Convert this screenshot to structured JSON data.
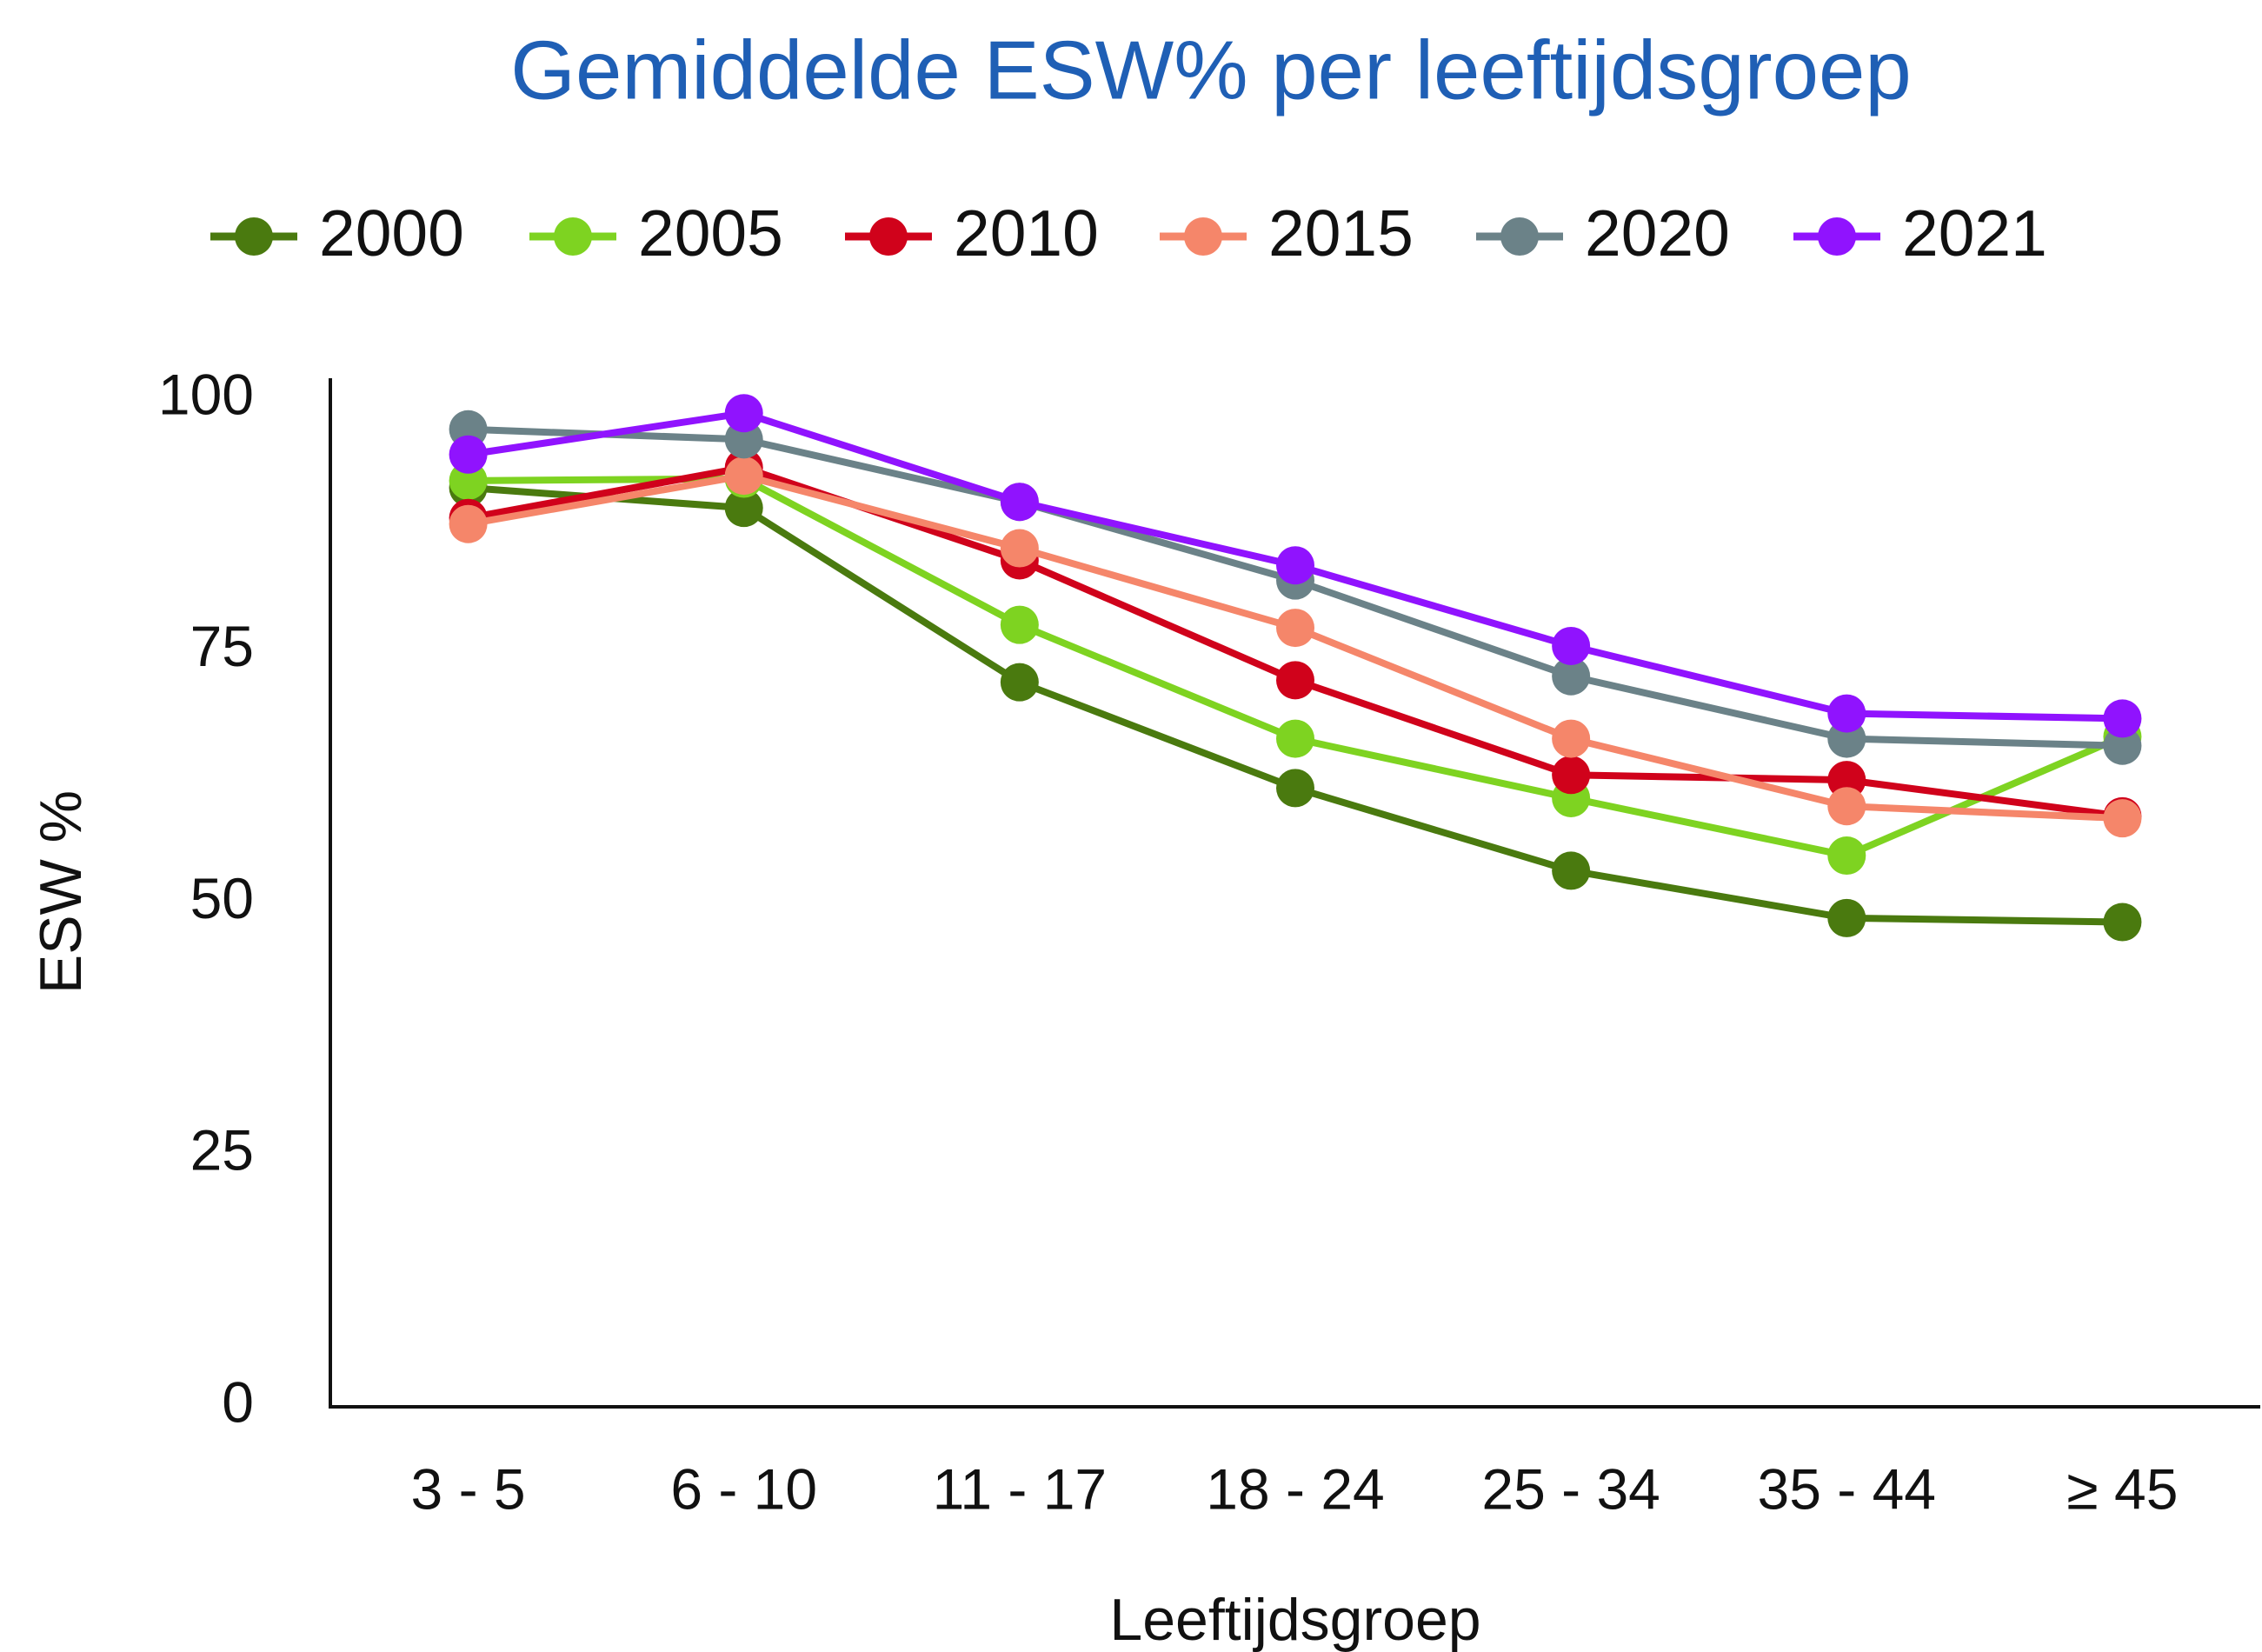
{
  "chart_data": {
    "type": "line",
    "title": "Gemiddelde ESW%  per leeftijdsgroep",
    "x_label": "Leeftijdsgroep",
    "y_label": "ESW %",
    "categories": [
      "3 - 5",
      "6 - 10",
      "11 - 17",
      "18 - 24",
      "25 - 34",
      "35 - 44",
      "≥ 45"
    ],
    "series": [
      {
        "name": "2000",
        "color": "#4a7a0f",
        "values": [
          91.2,
          89.2,
          71.9,
          61.4,
          53.2,
          48.5,
          48.1
        ]
      },
      {
        "name": "2005",
        "color": "#7ed321",
        "values": [
          91.9,
          92.1,
          77.6,
          66.3,
          60.4,
          54.7,
          66.5
        ]
      },
      {
        "name": "2010",
        "color": "#d0021b",
        "values": [
          88.2,
          93.2,
          84.0,
          72.1,
          62.7,
          62.2,
          58.6
        ]
      },
      {
        "name": "2015",
        "color": "#f5866a",
        "values": [
          87.6,
          92.4,
          85.2,
          77.3,
          66.3,
          59.6,
          58.4
        ]
      },
      {
        "name": "2020",
        "color": "#6b8288",
        "values": [
          97.0,
          96.0,
          89.8,
          82.0,
          72.5,
          66.3,
          65.6
        ]
      },
      {
        "name": "2021",
        "color": "#9013fe",
        "values": [
          94.5,
          98.6,
          89.8,
          83.5,
          75.5,
          68.8,
          68.3
        ]
      }
    ],
    "ylim": [
      0,
      100
    ],
    "yticks": [
      0,
      25,
      50,
      75,
      100
    ],
    "grid": false,
    "legend": "top"
  }
}
